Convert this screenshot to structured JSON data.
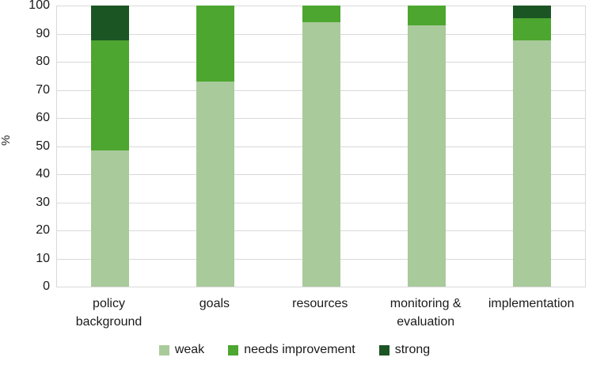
{
  "chart_data": {
    "type": "bar",
    "stacked": true,
    "title": "",
    "xlabel": "",
    "ylabel": "%",
    "ylim": [
      0,
      100
    ],
    "yticks": [
      0,
      10,
      20,
      30,
      40,
      50,
      60,
      70,
      80,
      90,
      100
    ],
    "grid": true,
    "legend_position": "bottom",
    "categories": [
      "policy\nbackground",
      "goals",
      "resources",
      "monitoring &\nevaluation",
      "implementation"
    ],
    "series": [
      {
        "name": "weak",
        "color": "#a9ca9b",
        "values": [
          48.5,
          73,
          94,
          93,
          87.5
        ]
      },
      {
        "name": "needs improvement",
        "color": "#4ca62f",
        "values": [
          39,
          27,
          6,
          7,
          8
        ]
      },
      {
        "name": "strong",
        "color": "#1c5524",
        "values": [
          12.5,
          0,
          0,
          0,
          4.5
        ]
      }
    ],
    "colors": {
      "gridline": "#d9d9d9",
      "text": "#1a1a1a",
      "background": "#ffffff"
    }
  }
}
